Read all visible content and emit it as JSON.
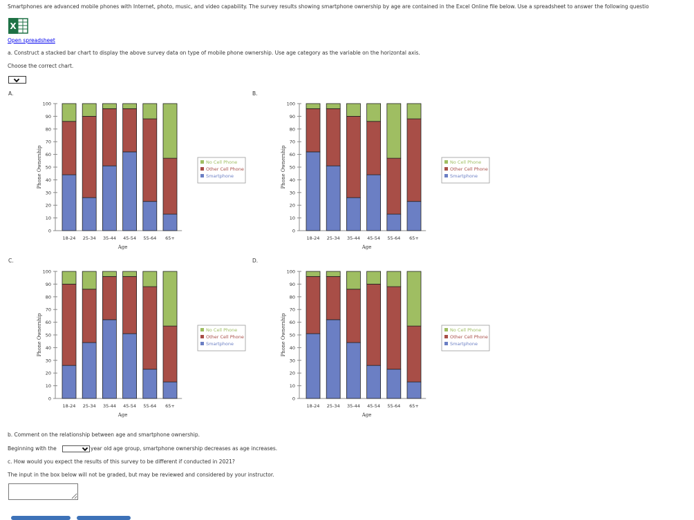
{
  "intro": "Smartphones are advanced mobile phones with Internet, photo, music, and video capability. The survey results showing smartphone ownership by age are contained in the Excel Online file below. Use a spreadsheet to answer the following questio",
  "open_link": "Open spreadsheet",
  "excel_icon": "excel-icon",
  "part_a": "a. Construct a stacked bar chart to display the above survey data on type of mobile phone ownership. Use age category as the variable on the horizontal axis.",
  "choose": "Choose the correct chart.",
  "options": [
    "A.",
    "B.",
    "C.",
    "D."
  ],
  "chart_colors": {
    "smartphone": "#6b7fc4",
    "other": "#a84e47",
    "none": "#9fbe62"
  },
  "chart_data": [
    {
      "type": "bar",
      "option": "A",
      "stacked": true,
      "title": "",
      "xlabel": "Age",
      "ylabel": "Phone Ownership",
      "ylim": [
        0,
        100
      ],
      "yticks": [
        0,
        10,
        20,
        30,
        40,
        50,
        60,
        70,
        80,
        90,
        100
      ],
      "categories": [
        "18-24",
        "25-34",
        "35-44",
        "45-54",
        "55-64",
        "65+"
      ],
      "series": [
        {
          "name": "Smartphone",
          "values": [
            44,
            26,
            51,
            62,
            23,
            13
          ]
        },
        {
          "name": "Other Cell Phone",
          "values": [
            42,
            64,
            45,
            34,
            65,
            44
          ]
        },
        {
          "name": "No Cell Phone",
          "values": [
            14,
            10,
            4,
            4,
            12,
            43
          ]
        }
      ],
      "legend": [
        "No Cell Phone",
        "Other Cell Phone",
        "Smartphone"
      ]
    },
    {
      "type": "bar",
      "option": "B",
      "stacked": true,
      "title": "",
      "xlabel": "Age",
      "ylabel": "Phone Ownership",
      "ylim": [
        0,
        100
      ],
      "yticks": [
        0,
        10,
        20,
        30,
        40,
        50,
        60,
        70,
        80,
        90,
        100
      ],
      "categories": [
        "18-24",
        "25-34",
        "35-44",
        "45-54",
        "55-64",
        "65+"
      ],
      "series": [
        {
          "name": "Smartphone",
          "values": [
            62,
            51,
            26,
            44,
            13,
            23
          ]
        },
        {
          "name": "Other Cell Phone",
          "values": [
            34,
            45,
            64,
            42,
            44,
            65
          ]
        },
        {
          "name": "No Cell Phone",
          "values": [
            4,
            4,
            10,
            14,
            43,
            12
          ]
        }
      ],
      "legend": [
        "No Cell Phone",
        "Other Cell Phone",
        "Smartphone"
      ]
    },
    {
      "type": "bar",
      "option": "C",
      "stacked": true,
      "title": "",
      "xlabel": "Age",
      "ylabel": "Phone Ownership",
      "ylim": [
        0,
        100
      ],
      "yticks": [
        0,
        10,
        20,
        30,
        40,
        50,
        60,
        70,
        80,
        90,
        100
      ],
      "categories": [
        "18-24",
        "25-34",
        "35-44",
        "45-54",
        "55-64",
        "65+"
      ],
      "series": [
        {
          "name": "Smartphone",
          "values": [
            26,
            44,
            62,
            51,
            23,
            13
          ]
        },
        {
          "name": "Other Cell Phone",
          "values": [
            64,
            42,
            34,
            45,
            65,
            44
          ]
        },
        {
          "name": "No Cell Phone",
          "values": [
            10,
            14,
            4,
            4,
            12,
            43
          ]
        }
      ],
      "legend": [
        "No Cell Phone",
        "Other Cell Phone",
        "Smartphone"
      ]
    },
    {
      "type": "bar",
      "option": "D",
      "stacked": true,
      "title": "",
      "xlabel": "Age",
      "ylabel": "Phone Ownership",
      "ylim": [
        0,
        100
      ],
      "yticks": [
        0,
        10,
        20,
        30,
        40,
        50,
        60,
        70,
        80,
        90,
        100
      ],
      "categories": [
        "18-24",
        "25-34",
        "35-44",
        "45-54",
        "55-64",
        "65+"
      ],
      "series": [
        {
          "name": "Smartphone",
          "values": [
            51,
            62,
            44,
            26,
            23,
            13
          ]
        },
        {
          "name": "Other Cell Phone",
          "values": [
            45,
            34,
            42,
            64,
            65,
            44
          ]
        },
        {
          "name": "No Cell Phone",
          "values": [
            4,
            4,
            14,
            10,
            12,
            43
          ]
        }
      ],
      "legend": [
        "No Cell Phone",
        "Other Cell Phone",
        "Smartphone"
      ]
    }
  ],
  "part_b": "b. Comment on the relationship between age and smartphone ownership.",
  "b_prefix": "Beginning with the",
  "b_suffix": "year old age group, smartphone ownership decreases as age increases.",
  "part_c": "c. How would you expect the results of this survey to be different if conducted in 2021?",
  "note": "The input in the box below will not be graded, but may be reviewed and considered by your instructor."
}
